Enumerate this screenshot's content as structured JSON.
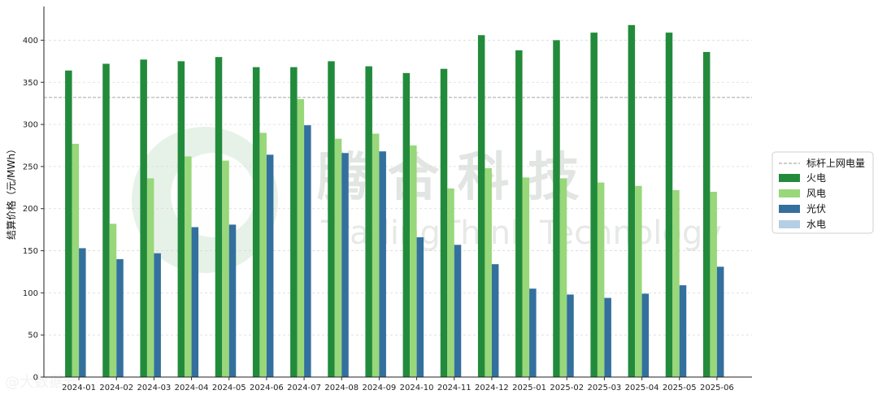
{
  "chart_data": {
    "type": "bar",
    "title": "",
    "xlabel": "",
    "ylabel": "结算价格（元/MWh）",
    "ylim": [
      0,
      440
    ],
    "yticks": [
      0,
      50,
      100,
      150,
      200,
      250,
      300,
      350,
      400
    ],
    "grid": "horizontal dashed",
    "legend_position": "right",
    "categories": [
      "2024-01",
      "2024-02",
      "2024-03",
      "2024-04",
      "2024-05",
      "2024-06",
      "2024-07",
      "2024-08",
      "2024-09",
      "2024-10",
      "2024-11",
      "2024-12",
      "2025-01",
      "2025-02",
      "2025-03",
      "2025-04",
      "2025-05",
      "2025-06"
    ],
    "series": [
      {
        "name": "火电",
        "color": "#228b3b",
        "values": [
          364,
          372,
          377,
          375,
          380,
          368,
          368,
          375,
          369,
          361,
          366,
          406,
          388,
          400,
          409,
          418,
          409,
          386
        ]
      },
      {
        "name": "风电",
        "color": "#98d77a",
        "values": [
          277,
          182,
          236,
          262,
          257,
          290,
          330,
          283,
          289,
          275,
          224,
          248,
          237,
          236,
          231,
          227,
          222,
          220
        ]
      },
      {
        "name": "光伏",
        "color": "#33709e",
        "values": [
          153,
          140,
          147,
          178,
          181,
          264,
          299,
          266,
          268,
          166,
          157,
          134,
          105,
          98,
          94,
          99,
          109,
          131
        ]
      },
      {
        "name": "水电",
        "color": "#b4cfe4",
        "values": [
          0,
          0,
          0,
          0,
          0,
          0,
          0,
          0,
          0,
          0,
          0,
          0,
          0,
          0,
          0,
          0,
          0,
          0
        ]
      }
    ],
    "reference_line": {
      "name": "标杆上网电量",
      "value": 332,
      "color": "#999999"
    }
  },
  "watermark": {
    "logo_text": "腾 合 科 技",
    "logo_subtext": "TradingThink Technology",
    "corner_text": "@大数据云"
  }
}
